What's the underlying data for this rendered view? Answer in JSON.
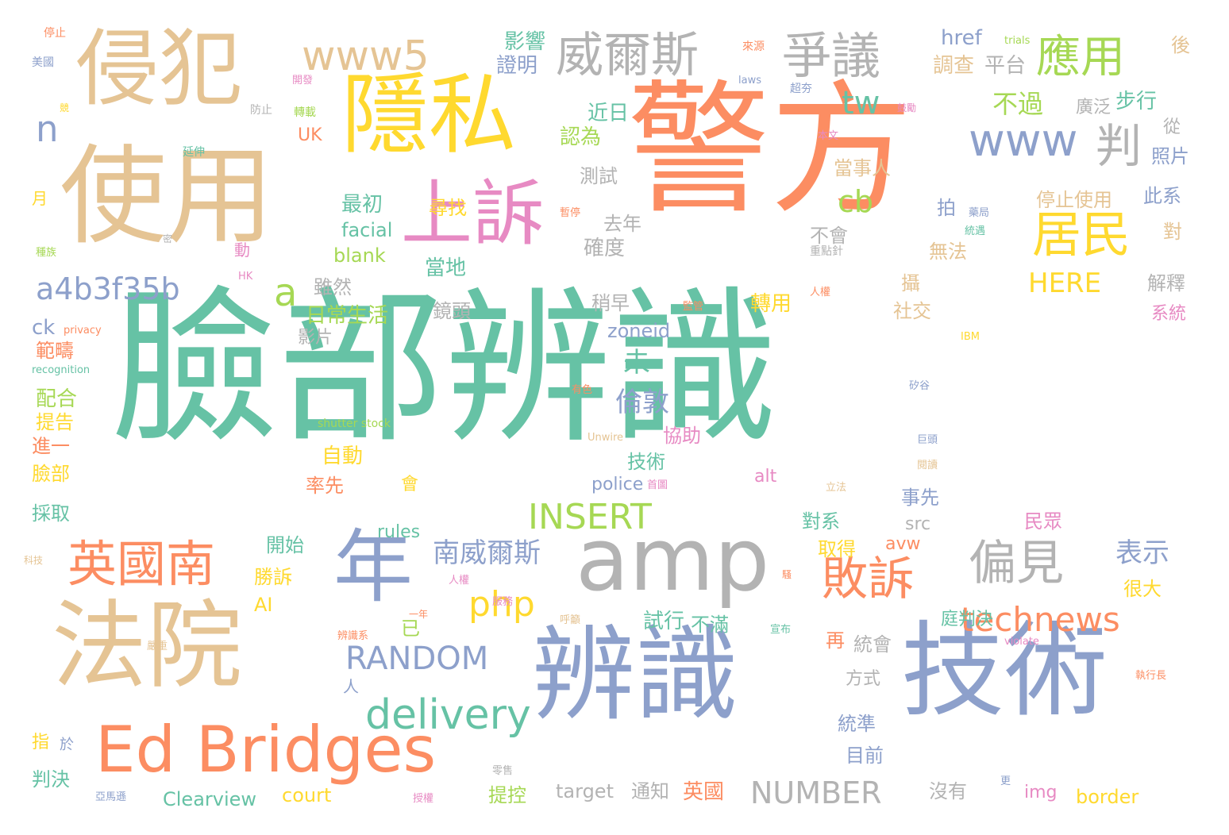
{
  "colors": {
    "green": "#66c2a5",
    "orange": "#fc8d62",
    "blue": "#8da0cb",
    "pink": "#e78ac3",
    "lime": "#a6d854",
    "yellow": "#ffd92f",
    "tan": "#e5c494",
    "gray": "#b3b3b3"
  },
  "words": [
    {
      "text": "臉部辨識",
      "color": "green"
    },
    {
      "text": "警方",
      "color": "orange"
    },
    {
      "text": "使用",
      "color": "tan"
    },
    {
      "text": "侵犯",
      "color": "tan"
    },
    {
      "text": "隱私",
      "color": "yellow"
    },
    {
      "text": "上訴",
      "color": "pink"
    },
    {
      "text": "法院",
      "color": "tan"
    },
    {
      "text": "辨識",
      "color": "blue"
    },
    {
      "text": "技術",
      "color": "blue"
    },
    {
      "text": "年",
      "color": "blue"
    },
    {
      "text": "amp",
      "color": "gray"
    },
    {
      "text": "Ed Bridges",
      "color": "orange"
    },
    {
      "text": "英國南",
      "color": "orange"
    },
    {
      "text": "www5",
      "color": "tan"
    },
    {
      "text": "威爾斯",
      "color": "gray"
    },
    {
      "text": "爭議",
      "color": "gray"
    },
    {
      "text": "應用",
      "color": "lime"
    },
    {
      "text": "居民",
      "color": "yellow"
    },
    {
      "text": "www",
      "color": "blue"
    },
    {
      "text": "判",
      "color": "gray"
    },
    {
      "text": "tw",
      "color": "green"
    },
    {
      "text": "n",
      "color": "blue"
    },
    {
      "text": "a",
      "color": "lime"
    },
    {
      "text": "a4b3f35b",
      "color": "blue"
    },
    {
      "text": "cb",
      "color": "lime"
    },
    {
      "text": "偏見",
      "color": "gray"
    },
    {
      "text": "敗訴",
      "color": "orange"
    },
    {
      "text": "technews",
      "color": "orange"
    },
    {
      "text": "php",
      "color": "yellow"
    },
    {
      "text": "delivery",
      "color": "green"
    },
    {
      "text": "INSERT",
      "color": "lime"
    },
    {
      "text": "RANDOM",
      "color": "blue"
    },
    {
      "text": "NUMBER",
      "color": "gray"
    },
    {
      "text": "南威爾斯",
      "color": "blue"
    },
    {
      "text": "HERE",
      "color": "yellow"
    },
    {
      "text": "表示",
      "color": "blue"
    },
    {
      "text": "未",
      "color": "green"
    },
    {
      "text": "倫敦",
      "color": "blue"
    },
    {
      "text": "不過",
      "color": "lime"
    },
    {
      "text": "步行",
      "color": "green"
    },
    {
      "text": "href",
      "color": "blue"
    },
    {
      "text": "調查",
      "color": "tan"
    },
    {
      "text": "平台",
      "color": "gray"
    },
    {
      "text": "影響",
      "color": "green"
    },
    {
      "text": "證明",
      "color": "blue"
    },
    {
      "text": "近日",
      "color": "green"
    },
    {
      "text": "認為",
      "color": "lime"
    },
    {
      "text": "廣泛",
      "color": "gray"
    },
    {
      "text": "測試",
      "color": "gray"
    },
    {
      "text": "當事人",
      "color": "tan"
    },
    {
      "text": "停止使用",
      "color": "tan"
    },
    {
      "text": "最初",
      "color": "green"
    },
    {
      "text": "尋找",
      "color": "yellow"
    },
    {
      "text": "去年",
      "color": "gray"
    },
    {
      "text": "facial",
      "color": "green"
    },
    {
      "text": "blank",
      "color": "lime"
    },
    {
      "text": "確度",
      "color": "gray"
    },
    {
      "text": "不會",
      "color": "gray"
    },
    {
      "text": "無法",
      "color": "tan"
    },
    {
      "text": "當地",
      "color": "green"
    },
    {
      "text": "雖然",
      "color": "gray"
    },
    {
      "text": "稍早",
      "color": "gray"
    },
    {
      "text": "日常生活",
      "color": "lime"
    },
    {
      "text": "鏡頭",
      "color": "gray"
    },
    {
      "text": "轉用",
      "color": "yellow"
    },
    {
      "text": "社交",
      "color": "tan"
    },
    {
      "text": "解釋",
      "color": "gray"
    },
    {
      "text": "系統",
      "color": "pink"
    },
    {
      "text": "zoneid",
      "color": "blue"
    },
    {
      "text": "ck",
      "color": "blue"
    },
    {
      "text": "範疇",
      "color": "orange"
    },
    {
      "text": "影片",
      "color": "gray"
    },
    {
      "text": "配合",
      "color": "lime"
    },
    {
      "text": "提告",
      "color": "yellow"
    },
    {
      "text": "進一",
      "color": "orange"
    },
    {
      "text": "臉部",
      "color": "yellow"
    },
    {
      "text": "採取",
      "color": "green"
    },
    {
      "text": "自動",
      "color": "yellow"
    },
    {
      "text": "率先",
      "color": "orange"
    },
    {
      "text": "會",
      "color": "yellow"
    },
    {
      "text": "police",
      "color": "blue"
    },
    {
      "text": "alt",
      "color": "pink"
    },
    {
      "text": "技術",
      "color": "green"
    },
    {
      "text": "協助",
      "color": "pink"
    },
    {
      "text": "事先",
      "color": "blue"
    },
    {
      "text": "src",
      "color": "gray"
    },
    {
      "text": "對系",
      "color": "green"
    },
    {
      "text": "取得",
      "color": "yellow"
    },
    {
      "text": "avw",
      "color": "orange"
    },
    {
      "text": "民眾",
      "color": "pink"
    },
    {
      "text": "rules",
      "color": "green"
    },
    {
      "text": "開始",
      "color": "green"
    },
    {
      "text": "勝訴",
      "color": "yellow"
    },
    {
      "text": "很大",
      "color": "yellow"
    },
    {
      "text": "AI",
      "color": "yellow"
    },
    {
      "text": "試行",
      "color": "green"
    },
    {
      "text": "不滿",
      "color": "green"
    },
    {
      "text": "已",
      "color": "lime"
    },
    {
      "text": "庭判決",
      "color": "green"
    },
    {
      "text": "再",
      "color": "orange"
    },
    {
      "text": "統會",
      "color": "gray"
    },
    {
      "text": "方式",
      "color": "gray"
    },
    {
      "text": "統準",
      "color": "blue"
    },
    {
      "text": "目前",
      "color": "blue"
    },
    {
      "text": "target",
      "color": "gray"
    },
    {
      "text": "通知",
      "color": "gray"
    },
    {
      "text": "英國",
      "color": "orange"
    },
    {
      "text": "提控",
      "color": "lime"
    },
    {
      "text": "court",
      "color": "yellow"
    },
    {
      "text": "Clearview",
      "color": "green"
    },
    {
      "text": "判決",
      "color": "green"
    },
    {
      "text": "指",
      "color": "yellow"
    },
    {
      "text": "於",
      "color": "blue"
    },
    {
      "text": "沒有",
      "color": "gray"
    },
    {
      "text": "img",
      "color": "pink"
    },
    {
      "text": "border",
      "color": "yellow"
    },
    {
      "text": "UK",
      "color": "orange"
    },
    {
      "text": "從",
      "color": "gray"
    },
    {
      "text": "照片",
      "color": "blue"
    },
    {
      "text": "此系",
      "color": "blue"
    },
    {
      "text": "對",
      "color": "tan"
    },
    {
      "text": "後",
      "color": "tan"
    },
    {
      "text": "拍",
      "color": "blue"
    },
    {
      "text": "攝",
      "color": "tan"
    },
    {
      "text": "動",
      "color": "pink"
    },
    {
      "text": "月",
      "color": "yellow"
    },
    {
      "text": "人",
      "color": "blue"
    },
    {
      "text": "停止",
      "color": "orange"
    },
    {
      "text": "美國",
      "color": "blue"
    },
    {
      "text": "開發",
      "color": "pink"
    },
    {
      "text": "來源",
      "color": "orange"
    },
    {
      "text": "trials",
      "color": "lime"
    },
    {
      "text": "laws",
      "color": "blue"
    },
    {
      "text": "超夯",
      "color": "blue"
    },
    {
      "text": "競",
      "color": "yellow"
    },
    {
      "text": "防止",
      "color": "gray"
    },
    {
      "text": "轉載",
      "color": "lime"
    },
    {
      "text": "鼓勵",
      "color": "pink"
    },
    {
      "text": "延伸",
      "color": "green"
    },
    {
      "text": "本文",
      "color": "pink"
    },
    {
      "text": "密",
      "color": "gray"
    },
    {
      "text": "種族",
      "color": "lime"
    },
    {
      "text": "暫停",
      "color": "orange"
    },
    {
      "text": "藥局",
      "color": "blue"
    },
    {
      "text": "統遇",
      "color": "green"
    },
    {
      "text": "重點針",
      "color": "gray"
    },
    {
      "text": "HK",
      "color": "pink"
    },
    {
      "text": "人權",
      "color": "orange"
    },
    {
      "text": "監管",
      "color": "orange"
    },
    {
      "text": "privacy",
      "color": "orange"
    },
    {
      "text": "IBM",
      "color": "yellow"
    },
    {
      "text": "recognition",
      "color": "green"
    },
    {
      "text": "有色",
      "color": "orange"
    },
    {
      "text": "矽谷",
      "color": "blue"
    },
    {
      "text": "shutter stock",
      "color": "lime"
    },
    {
      "text": "Unwire",
      "color": "tan"
    },
    {
      "text": "巨頭",
      "color": "blue"
    },
    {
      "text": "首圖",
      "color": "pink"
    },
    {
      "text": "閱讀",
      "color": "tan"
    },
    {
      "text": "立法",
      "color": "tan"
    },
    {
      "text": "科技",
      "color": "tan"
    },
    {
      "text": "一年",
      "color": "orange"
    },
    {
      "text": "人權",
      "color": "pink"
    },
    {
      "text": "服務",
      "color": "pink"
    },
    {
      "text": "呼籲",
      "color": "tan"
    },
    {
      "text": "辨識系",
      "color": "orange"
    },
    {
      "text": "宣布",
      "color": "green"
    },
    {
      "text": "嚴重",
      "color": "tan"
    },
    {
      "text": "violate",
      "color": "pink"
    },
    {
      "text": "執行長",
      "color": "orange"
    },
    {
      "text": "亞馬遜",
      "color": "blue"
    },
    {
      "text": "授權",
      "color": "pink"
    },
    {
      "text": "零售",
      "color": "gray"
    },
    {
      "text": "更",
      "color": "blue"
    },
    {
      "text": "騷",
      "color": "orange"
    }
  ]
}
